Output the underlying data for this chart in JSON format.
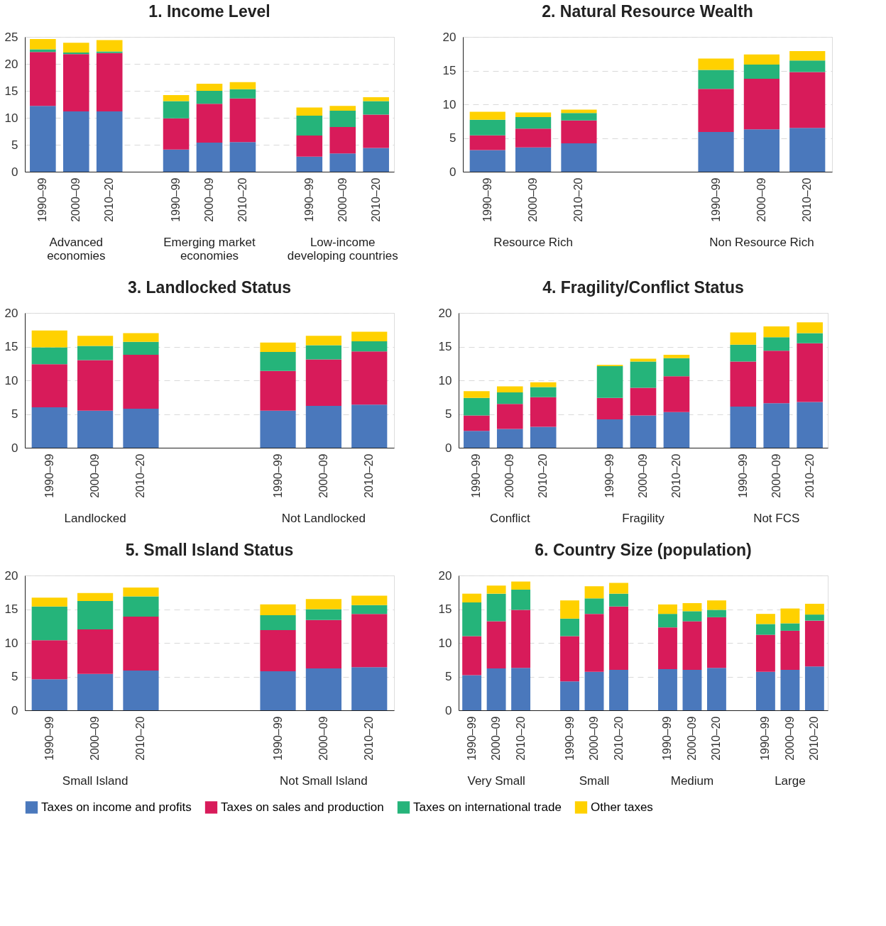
{
  "chart_data": [
    {
      "type": "bar",
      "stacked": true,
      "title": "1. Income Level",
      "categories": [
        "1990–99",
        "2000–09",
        "2010–20",
        "1990–99",
        "2000–09",
        "2010–20",
        "1990–99",
        "2000–09",
        "2010–20"
      ],
      "series": [
        {
          "name": "Taxes on income and profits",
          "color": "#4a78bc",
          "values": [
            12.2,
            11.2,
            11.2,
            4.1,
            5.4,
            5.5,
            2.8,
            3.4,
            4.4
          ]
        },
        {
          "name": "Taxes on sales and production",
          "color": "#d81b5a",
          "values": [
            10.0,
            10.6,
            10.8,
            5.8,
            7.2,
            8.1,
            3.9,
            4.9,
            6.2
          ]
        },
        {
          "name": "Taxes on international trade",
          "color": "#25b47a",
          "values": [
            0.5,
            0.3,
            0.3,
            3.2,
            2.4,
            1.7,
            3.7,
            3.0,
            2.5
          ]
        },
        {
          "name": "Other taxes",
          "color": "#ffd100",
          "values": [
            1.9,
            1.8,
            2.1,
            1.1,
            1.3,
            1.3,
            1.5,
            0.9,
            0.7
          ]
        }
      ],
      "ylim": [
        0,
        25
      ],
      "yticks": [
        0,
        5,
        10,
        15,
        20,
        25
      ],
      "grid": "y",
      "legend": "bottom",
      "annotations": [
        "Advanced\neconomies",
        "Emerging market\neconomies",
        "Low-income\ndeveloping countries"
      ]
    },
    {
      "type": "bar",
      "stacked": true,
      "title": "2. Natural Resource Wealth",
      "categories": [
        "1990–99",
        "2000–09",
        "2010–20",
        "1990–99",
        "2000–09",
        "2010–20"
      ],
      "series": [
        {
          "name": "Taxes on income and profits",
          "color": "#4a78bc",
          "values": [
            3.2,
            3.6,
            4.2,
            5.9,
            6.3,
            6.5
          ]
        },
        {
          "name": "Taxes on sales and production",
          "color": "#d81b5a",
          "values": [
            2.2,
            2.8,
            3.4,
            6.4,
            7.5,
            8.3
          ]
        },
        {
          "name": "Taxes on international trade",
          "color": "#25b47a",
          "values": [
            2.3,
            1.7,
            1.1,
            2.8,
            2.1,
            1.7
          ]
        },
        {
          "name": "Other taxes",
          "color": "#ffd100",
          "values": [
            1.2,
            0.7,
            0.5,
            1.7,
            1.5,
            1.4
          ]
        }
      ],
      "ylim": [
        0,
        20
      ],
      "yticks": [
        0,
        5,
        10,
        15,
        20
      ],
      "grid": "y",
      "legend": "bottom",
      "annotations": [
        "Resource Rich",
        "Non Resource Rich"
      ]
    },
    {
      "type": "bar",
      "stacked": true,
      "title": "3. Landlocked Status",
      "categories": [
        "1990–99",
        "2000–09",
        "2010–20",
        "1990–99",
        "2000–09",
        "2010–20"
      ],
      "series": [
        {
          "name": "Taxes on income and profits",
          "color": "#4a78bc",
          "values": [
            6.0,
            5.5,
            5.8,
            5.5,
            6.2,
            6.4
          ]
        },
        {
          "name": "Taxes on sales and production",
          "color": "#d81b5a",
          "values": [
            6.4,
            7.5,
            8.0,
            5.9,
            6.9,
            7.9
          ]
        },
        {
          "name": "Taxes on international trade",
          "color": "#25b47a",
          "values": [
            2.5,
            2.1,
            1.9,
            2.8,
            2.1,
            1.5
          ]
        },
        {
          "name": "Other taxes",
          "color": "#ffd100",
          "values": [
            2.5,
            1.5,
            1.3,
            1.4,
            1.4,
            1.4
          ]
        }
      ],
      "ylim": [
        0,
        20
      ],
      "yticks": [
        0,
        5,
        10,
        15,
        20
      ],
      "grid": "y",
      "legend": "bottom",
      "annotations": [
        "Landlocked",
        "Not Landlocked"
      ]
    },
    {
      "type": "bar",
      "stacked": true,
      "title": "4. Fragility/Conflict Status",
      "categories": [
        "1990–99",
        "2000–09",
        "2010–20",
        "1990–99",
        "2000–09",
        "2010–20",
        "1990–99",
        "2000–09",
        "2010–20"
      ],
      "series": [
        {
          "name": "Taxes on income and profits",
          "color": "#4a78bc",
          "values": [
            2.5,
            2.8,
            3.1,
            4.2,
            4.8,
            5.3,
            6.1,
            6.6,
            6.8
          ]
        },
        {
          "name": "Taxes on sales and production",
          "color": "#d81b5a",
          "values": [
            2.3,
            3.7,
            4.4,
            3.2,
            4.1,
            5.3,
            6.7,
            7.8,
            8.7
          ]
        },
        {
          "name": "Taxes on international trade",
          "color": "#25b47a",
          "values": [
            2.6,
            1.7,
            1.5,
            4.7,
            3.9,
            2.7,
            2.5,
            2.0,
            1.5
          ]
        },
        {
          "name": "Other taxes",
          "color": "#ffd100",
          "values": [
            1.0,
            0.9,
            0.7,
            0.2,
            0.4,
            0.5,
            1.8,
            1.6,
            1.6
          ]
        }
      ],
      "ylim": [
        0,
        20
      ],
      "yticks": [
        0,
        5,
        10,
        15,
        20
      ],
      "grid": "y",
      "legend": "bottom",
      "annotations": [
        "Conflict",
        "Fragility",
        "Not FCS"
      ]
    },
    {
      "type": "bar",
      "stacked": true,
      "title": "5. Small Island Status",
      "categories": [
        "1990–99",
        "2000–09",
        "2010–20",
        "1990–99",
        "2000–09",
        "2010–20"
      ],
      "series": [
        {
          "name": "Taxes on income and profits",
          "color": "#4a78bc",
          "values": [
            4.6,
            5.4,
            5.9,
            5.8,
            6.2,
            6.4
          ]
        },
        {
          "name": "Taxes on sales and production",
          "color": "#d81b5a",
          "values": [
            5.8,
            6.6,
            8.0,
            6.1,
            7.2,
            7.9
          ]
        },
        {
          "name": "Taxes on international trade",
          "color": "#25b47a",
          "values": [
            5.0,
            4.2,
            3.0,
            2.2,
            1.6,
            1.3
          ]
        },
        {
          "name": "Other taxes",
          "color": "#ffd100",
          "values": [
            1.3,
            1.2,
            1.3,
            1.6,
            1.5,
            1.4
          ]
        }
      ],
      "ylim": [
        0,
        20
      ],
      "yticks": [
        0,
        5,
        10,
        15,
        20
      ],
      "grid": "y",
      "legend": "bottom",
      "annotations": [
        "Small Island",
        "Not Small Island"
      ]
    },
    {
      "type": "bar",
      "stacked": true,
      "title": "6. Country Size (population)",
      "categories": [
        "1990–99",
        "2000–09",
        "2010–20",
        "1990–99",
        "2000–09",
        "2010–20",
        "1990–99",
        "2000–09",
        "2010–20",
        "1990–99",
        "2000–09",
        "2010–20"
      ],
      "series": [
        {
          "name": "Taxes on income and profits",
          "color": "#4a78bc",
          "values": [
            5.2,
            6.2,
            6.3,
            4.3,
            5.7,
            6.0,
            6.1,
            6.0,
            6.3,
            5.7,
            6.0,
            6.5
          ]
        },
        {
          "name": "Taxes on sales and production",
          "color": "#d81b5a",
          "values": [
            5.8,
            7.0,
            8.6,
            6.7,
            8.6,
            9.4,
            6.2,
            7.2,
            7.5,
            5.5,
            5.8,
            6.8
          ]
        },
        {
          "name": "Taxes on international trade",
          "color": "#25b47a",
          "values": [
            5.0,
            4.1,
            3.0,
            2.6,
            2.3,
            1.9,
            2.0,
            1.5,
            1.1,
            1.6,
            1.1,
            0.9
          ]
        },
        {
          "name": "Other taxes",
          "color": "#ffd100",
          "values": [
            1.3,
            1.2,
            1.2,
            2.7,
            1.8,
            1.6,
            1.4,
            1.2,
            1.4,
            1.5,
            2.2,
            1.6
          ]
        }
      ],
      "ylim": [
        0,
        20
      ],
      "yticks": [
        0,
        5,
        10,
        15,
        20
      ],
      "grid": "y",
      "legend": "bottom",
      "annotations": [
        "Very Small",
        "Small",
        "Medium",
        "Large"
      ]
    }
  ]
}
